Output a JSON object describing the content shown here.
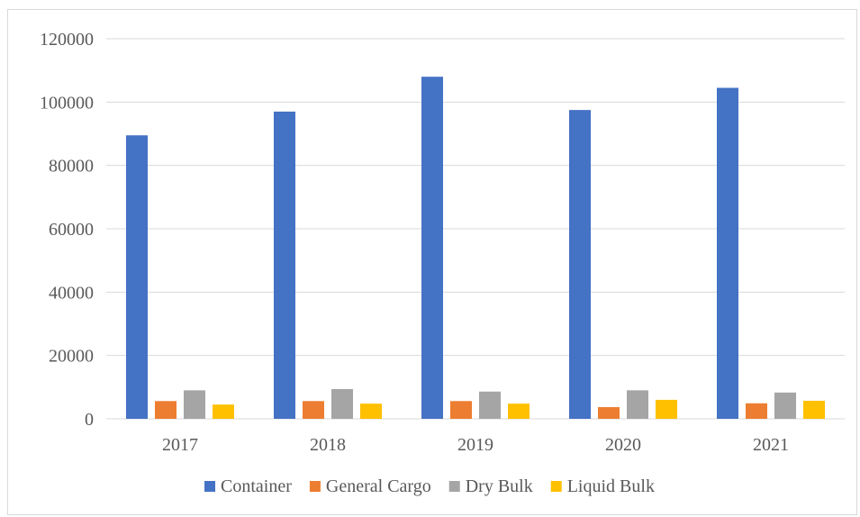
{
  "chart_data": {
    "type": "bar",
    "title": "",
    "xlabel": "",
    "ylabel": "",
    "categories": [
      "2017",
      "2018",
      "2019",
      "2020",
      "2021"
    ],
    "ylim": [
      0,
      120000
    ],
    "yticks": [
      "0",
      "20000",
      "40000",
      "60000",
      "80000",
      "100000",
      "120000"
    ],
    "grid": true,
    "legend_position": "bottom",
    "series": [
      {
        "name": "Container",
        "color": "#4472c4",
        "values": [
          89500,
          97000,
          108000,
          97500,
          104500
        ]
      },
      {
        "name": "General Cargo",
        "color": "#ed7d31",
        "values": [
          5600,
          5600,
          5600,
          3700,
          4900
        ]
      },
      {
        "name": "Dry Bulk",
        "color": "#a5a5a5",
        "values": [
          9000,
          9400,
          8600,
          9000,
          8300
        ]
      },
      {
        "name": "Liquid Bulk",
        "color": "#ffc000",
        "values": [
          4500,
          4800,
          4800,
          6000,
          5700
        ]
      }
    ]
  }
}
